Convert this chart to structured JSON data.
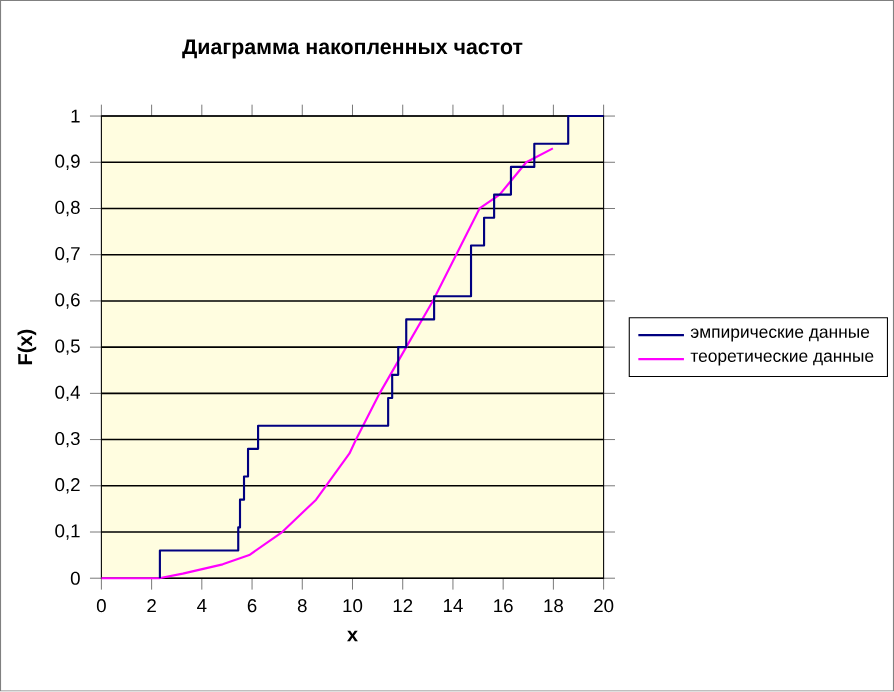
{
  "chart_data": {
    "type": "line",
    "title": "Диаграмма накопленных частот",
    "xlabel": "x",
    "ylabel": "F(x)",
    "xlim": [
      0,
      20
    ],
    "xticks": [
      0,
      2,
      4,
      6,
      8,
      10,
      12,
      14,
      16,
      18,
      20
    ],
    "ylim": [
      0,
      1
    ],
    "yticks": [
      0,
      {
        "value": 0.1,
        "label": "0,1"
      },
      {
        "value": 0.2,
        "label": "0,2"
      },
      {
        "value": 0.3,
        "label": "0,3"
      },
      {
        "value": 0.4,
        "label": "0,4"
      },
      {
        "value": 0.5,
        "label": "0,5"
      },
      {
        "value": 0.6,
        "label": "0,6"
      },
      {
        "value": 0.7,
        "label": "0,7"
      },
      {
        "value": 0.8,
        "label": "0,8"
      },
      {
        "value": 0.9,
        "label": "0,9"
      },
      1
    ],
    "grid": "y",
    "legend": "right",
    "series": [
      {
        "name": "эмпирические данные",
        "type": "step",
        "color": "#000080",
        "x": [
          2.33,
          2.33,
          5.45,
          5.52,
          5.68,
          5.84,
          6.24,
          11.42,
          11.58,
          11.82,
          12.14,
          13.25,
          14.72,
          15.24,
          15.64,
          16.31,
          17.24,
          18.59,
          20
        ],
        "values": [
          0,
          0.06,
          0.11,
          0.17,
          0.22,
          0.28,
          0.33,
          0.39,
          0.44,
          0.5,
          0.56,
          0.61,
          0.72,
          0.78,
          0.83,
          0.89,
          0.94,
          1,
          1
        ]
      },
      {
        "name": "теоретические данные",
        "color": "#ff00ff",
        "x": [
          0,
          2.3,
          3.24,
          4.83,
          5.89,
          7.2,
          8.55,
          9.88,
          10.14,
          11.08,
          12.14,
          13.2,
          14.13,
          15.06,
          15.86,
          16.92,
          17.98
        ],
        "values": [
          0,
          0,
          0.01,
          0.03,
          0.05,
          0.1,
          0.17,
          0.27,
          0.3,
          0.4,
          0.5,
          0.6,
          0.7,
          0.8,
          0.83,
          0.9,
          0.93
        ]
      }
    ]
  }
}
